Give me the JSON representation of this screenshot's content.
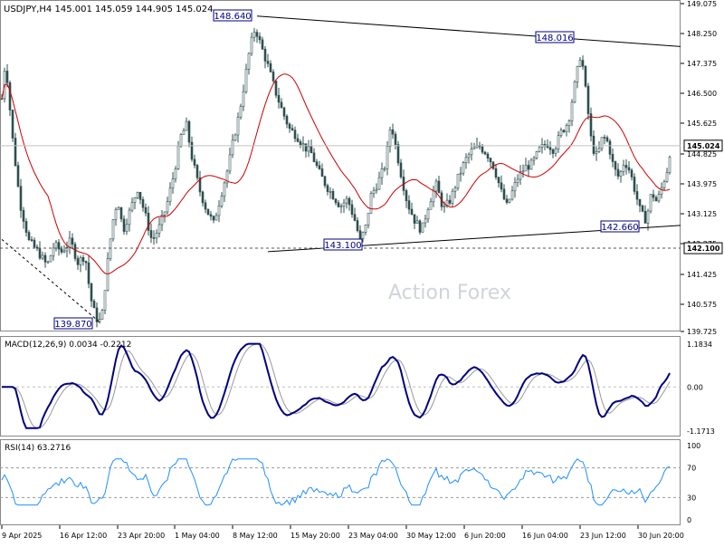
{
  "chart_data": {
    "type": "candlestick",
    "symbol_header": "USDJPY,H4",
    "ohlc": {
      "open": "145.001",
      "high": "145.059",
      "low": "144.905",
      "close": "145.024"
    },
    "watermark": "Action Forex",
    "current_price": {
      "label": "145.024",
      "value": 145.024
    },
    "support_level": {
      "label": "142.100",
      "value": 142.1
    },
    "price_axis": {
      "min": 139.725,
      "max": 149.075,
      "ticks": [
        "149.075",
        "148.250",
        "147.375",
        "146.500",
        "145.625",
        "144.825",
        "143.975",
        "143.125",
        "142.275",
        "141.425",
        "140.575",
        "139.725"
      ]
    },
    "time_axis": {
      "labels": [
        "9 Apr 2025",
        "16 Apr 12:00",
        "23 Apr 20:00",
        "1 May 04:00",
        "8 May 12:00",
        "15 May 20:00",
        "23 May 04:00",
        "30 May 12:00",
        "6 Jun 20:00",
        "16 Jun 04:00",
        "23 Jun 12:00",
        "30 Jun 20:00"
      ]
    },
    "annotations": [
      {
        "label": "148.640",
        "value": 148.64
      },
      {
        "label": "148.016",
        "value": 148.016
      },
      {
        "label": "143.100",
        "value": 143.1
      },
      {
        "label": "142.660",
        "value": 142.66
      },
      {
        "label": "139.870",
        "value": 139.87
      }
    ],
    "price_path": [
      [
        0,
        145.8
      ],
      [
        6,
        147.5
      ],
      [
        14,
        145.2
      ],
      [
        22,
        143.4
      ],
      [
        32,
        142.3
      ],
      [
        42,
        142.0
      ],
      [
        52,
        141.6
      ],
      [
        60,
        142.2
      ],
      [
        68,
        142.0
      ],
      [
        78,
        142.3
      ],
      [
        86,
        141.7
      ],
      [
        94,
        141.9
      ],
      [
        100,
        140.7
      ],
      [
        106,
        140.1
      ],
      [
        112,
        140.0
      ],
      [
        118,
        141.5
      ],
      [
        124,
        142.8
      ],
      [
        130,
        143.5
      ],
      [
        136,
        142.6
      ],
      [
        144,
        143.2
      ],
      [
        152,
        143.8
      ],
      [
        160,
        143.1
      ],
      [
        168,
        142.3
      ],
      [
        176,
        142.7
      ],
      [
        184,
        143.3
      ],
      [
        192,
        144.2
      ],
      [
        200,
        145.3
      ],
      [
        206,
        145.6
      ],
      [
        212,
        144.7
      ],
      [
        220,
        143.8
      ],
      [
        228,
        143.2
      ],
      [
        236,
        142.8
      ],
      [
        244,
        143.6
      ],
      [
        252,
        144.4
      ],
      [
        258,
        145.2
      ],
      [
        264,
        145.9
      ],
      [
        270,
        146.8
      ],
      [
        276,
        147.8
      ],
      [
        282,
        148.4
      ],
      [
        288,
        147.9
      ],
      [
        296,
        147.3
      ],
      [
        304,
        146.6
      ],
      [
        312,
        146.0
      ],
      [
        320,
        145.5
      ],
      [
        328,
        145.3
      ],
      [
        336,
        145.0
      ],
      [
        344,
        144.8
      ],
      [
        352,
        144.3
      ],
      [
        360,
        143.9
      ],
      [
        368,
        143.6
      ],
      [
        376,
        143.3
      ],
      [
        384,
        143.5
      ],
      [
        392,
        142.9
      ],
      [
        398,
        142.3
      ],
      [
        404,
        142.7
      ],
      [
        410,
        143.6
      ],
      [
        418,
        144.0
      ],
      [
        426,
        144.5
      ],
      [
        432,
        145.7
      ],
      [
        438,
        144.9
      ],
      [
        444,
        144.1
      ],
      [
        450,
        143.4
      ],
      [
        458,
        142.9
      ],
      [
        466,
        142.6
      ],
      [
        474,
        143.4
      ],
      [
        482,
        143.9
      ],
      [
        490,
        143.2
      ],
      [
        498,
        143.5
      ],
      [
        506,
        144.1
      ],
      [
        514,
        144.6
      ],
      [
        522,
        144.9
      ],
      [
        530,
        145.0
      ],
      [
        538,
        144.8
      ],
      [
        546,
        144.4
      ],
      [
        554,
        143.7
      ],
      [
        560,
        143.3
      ],
      [
        566,
        143.7
      ],
      [
        572,
        144.1
      ],
      [
        580,
        144.4
      ],
      [
        588,
        144.5
      ],
      [
        596,
        144.9
      ],
      [
        604,
        145.1
      ],
      [
        612,
        144.9
      ],
      [
        620,
        145.4
      ],
      [
        628,
        145.7
      ],
      [
        636,
        146.9
      ],
      [
        642,
        147.7
      ],
      [
        648,
        146.4
      ],
      [
        654,
        145.0
      ],
      [
        660,
        144.7
      ],
      [
        666,
        145.3
      ],
      [
        672,
        145.1
      ],
      [
        678,
        144.4
      ],
      [
        684,
        144.1
      ],
      [
        690,
        144.6
      ],
      [
        696,
        144.3
      ],
      [
        702,
        143.7
      ],
      [
        708,
        143.1
      ],
      [
        714,
        142.9
      ],
      [
        720,
        143.7
      ],
      [
        726,
        143.4
      ],
      [
        732,
        143.9
      ],
      [
        738,
        144.4
      ],
      [
        741,
        145.02
      ]
    ],
    "macd": {
      "label": "MACD(12,26,9) 0.0034 -0.2212",
      "ticks": [
        "1.1834",
        "0.00",
        "-1.1713"
      ],
      "min": -1.1713,
      "max": 1.1834
    },
    "rsi": {
      "label": "RSI(14) 63.2716",
      "ticks": [
        "100",
        "70",
        "30",
        "0"
      ],
      "levels": [
        70,
        30
      ]
    },
    "colors": {
      "candle": "#2f4f4f",
      "ma": "#cc0000",
      "macd": "#000080",
      "signal": "#999999",
      "rsi": "#1e90ff",
      "grid": "#c0c0c0"
    }
  }
}
